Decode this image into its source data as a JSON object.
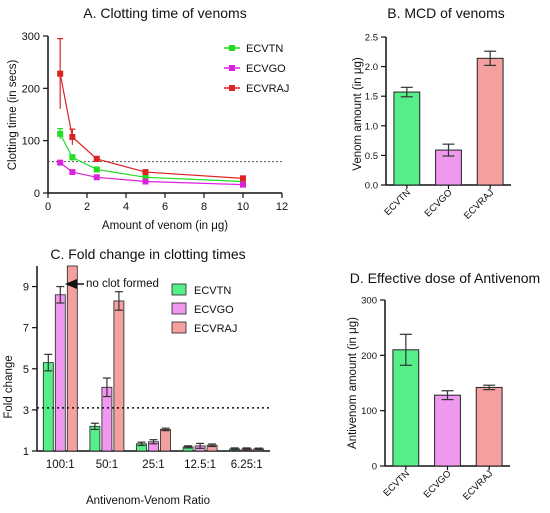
{
  "chart_data": [
    {
      "type": "line",
      "title": "A. Clotting time of venoms",
      "xlabel": "Amount of venom (in μg)",
      "ylabel": "Clotting time (in secs)",
      "xlim": [
        0,
        12
      ],
      "ylim": [
        0,
        300
      ],
      "xticks": [
        0,
        2,
        4,
        6,
        8,
        10,
        12
      ],
      "yticks": [
        0,
        100,
        200,
        300
      ],
      "reference_line": 60,
      "legend": "top-right",
      "series": [
        {
          "name": "ECVTN",
          "color": "#22dd22",
          "x": [
            0.625,
            1.25,
            2.5,
            5,
            10
          ],
          "y": [
            113,
            68,
            45,
            30,
            22
          ],
          "err": [
            10,
            5,
            3,
            2,
            2
          ]
        },
        {
          "name": "ECVGO",
          "color": "#dd22dd",
          "x": [
            0.625,
            1.25,
            2.5,
            5,
            10
          ],
          "y": [
            58,
            40,
            30,
            22,
            16
          ],
          "err": [
            3,
            3,
            2,
            2,
            2
          ]
        },
        {
          "name": "ECVRAJ",
          "color": "#dd2222",
          "x": [
            0.625,
            1.25,
            2.5,
            5,
            10
          ],
          "y": [
            228,
            107,
            65,
            40,
            28
          ],
          "err": [
            67,
            15,
            5,
            3,
            2
          ]
        }
      ]
    },
    {
      "type": "bar",
      "title": "B. MCD of venoms",
      "ylabel": "Venom amount (in μg)",
      "ylim": [
        0,
        2.5
      ],
      "yticks": [
        "0.0",
        "0.5",
        "1.0",
        "1.5",
        "2.0",
        "2.5"
      ],
      "categories": [
        "ECVTN",
        "ECVGO",
        "ECVRAJ"
      ],
      "values": [
        1.57,
        0.59,
        2.14
      ],
      "err": [
        0.08,
        0.1,
        0.12
      ],
      "colors": [
        "#55ee88",
        "#ee99ee",
        "#f4a0a0"
      ]
    },
    {
      "type": "bar",
      "title": "C. Fold change in clotting times",
      "xlabel": "Antivenom-Venom Ratio",
      "ylabel": "Fold change",
      "ylim": [
        1,
        10
      ],
      "yticks": [
        1,
        3,
        5,
        7,
        9
      ],
      "categories": [
        "100:1",
        "50:1",
        "25:1",
        "12.5:1",
        "6.25:1"
      ],
      "reference_line": 3.1,
      "annotation": "no clot formed",
      "legend": "top-right",
      "series": [
        {
          "name": "ECVTN",
          "color": "#55ee88",
          "values": [
            5.3,
            2.2,
            1.35,
            1.2,
            1.1
          ],
          "err": [
            0.4,
            0.15,
            0.08,
            0.05,
            0.05
          ]
        },
        {
          "name": "ECVGO",
          "color": "#ee99ee",
          "values": [
            8.6,
            4.1,
            1.45,
            1.25,
            1.1
          ],
          "err": [
            0.4,
            0.45,
            0.1,
            0.12,
            0.05
          ]
        },
        {
          "name": "ECVRAJ",
          "color": "#f4a0a0",
          "values": [
            10,
            8.3,
            2.05,
            1.28,
            1.1
          ],
          "err": [
            0,
            0.45,
            0.06,
            0.06,
            0.04
          ]
        }
      ]
    },
    {
      "type": "bar",
      "title": "D. Effective dose of Antivenom",
      "ylabel": "Antivenom amount (in μg)",
      "ylim": [
        0,
        300
      ],
      "yticks": [
        0,
        100,
        200,
        300
      ],
      "categories": [
        "ECVTN",
        "ECVGO",
        "ECVRAJ"
      ],
      "values": [
        210,
        128,
        142
      ],
      "err": [
        28,
        8,
        4
      ],
      "colors": [
        "#55ee88",
        "#ee99ee",
        "#f4a0a0"
      ]
    }
  ]
}
